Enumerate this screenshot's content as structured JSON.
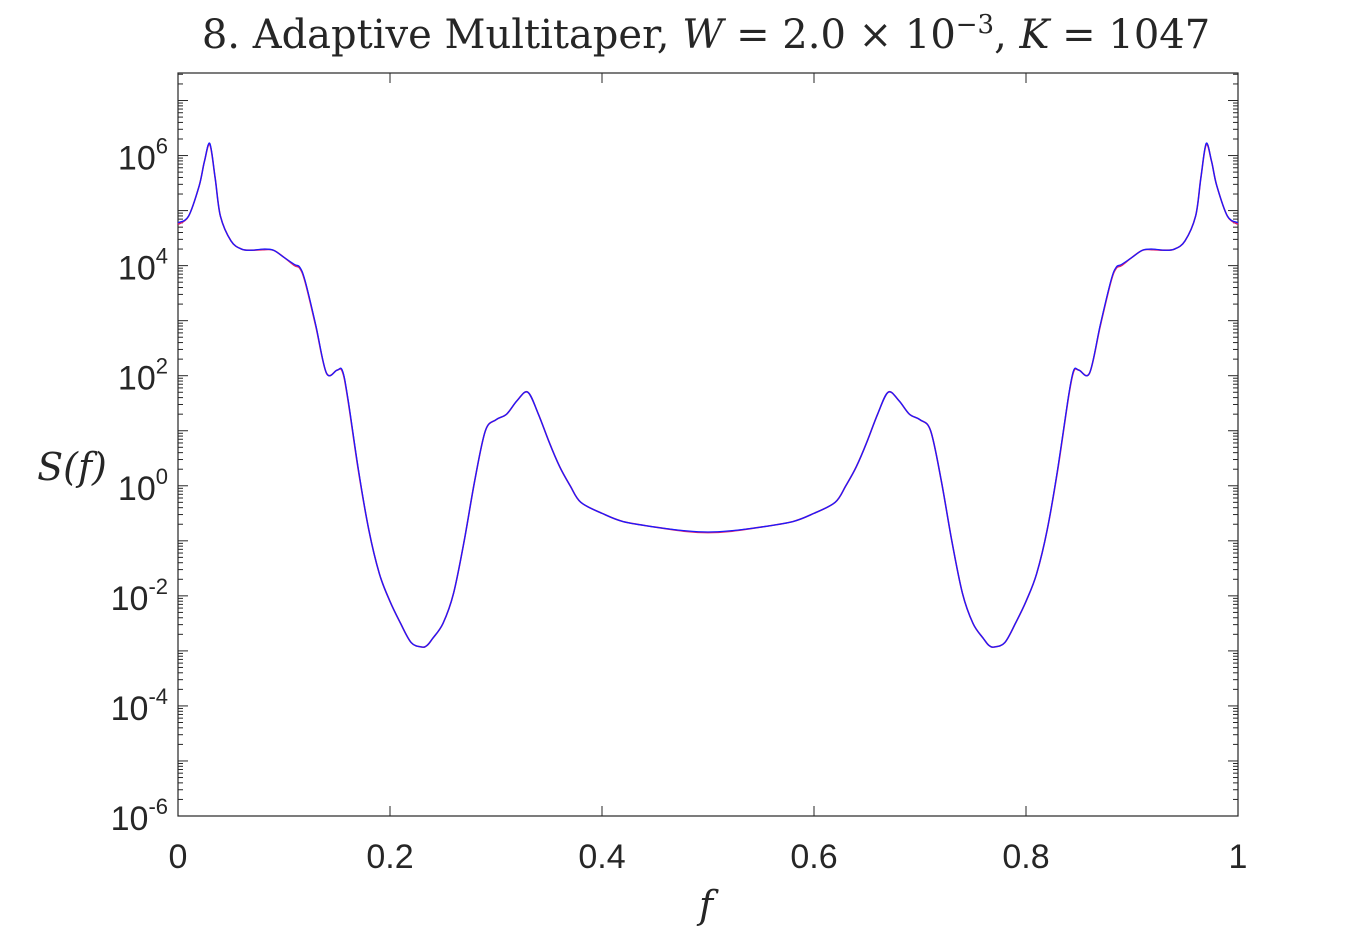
{
  "chart_data": {
    "type": "line",
    "title": {
      "prefix": "8.  Adaptive Multitaper, ",
      "w_symbol": "W",
      "w_eq": " = 2.0 × 10",
      "w_exp": "−3",
      "sep": ", ",
      "k_symbol": "K",
      "k_eq": " = 1047"
    },
    "xlabel": "f",
    "ylabel": "S(f)",
    "xlim": [
      0,
      1
    ],
    "ylim_log10": [
      -6,
      7.5
    ],
    "yscale": "log",
    "grid": false,
    "x_ticks": [
      "0",
      "0.2",
      "0.4",
      "0.6",
      "0.8",
      "1"
    ],
    "x_tick_values": [
      0,
      0.2,
      0.4,
      0.6,
      0.8,
      1
    ],
    "y_ticks": [
      {
        "base": "10",
        "exp": "6",
        "log10": 6
      },
      {
        "base": "10",
        "exp": "4",
        "log10": 4
      },
      {
        "base": "10",
        "exp": "2",
        "log10": 2
      },
      {
        "base": "10",
        "exp": "0",
        "log10": 0
      },
      {
        "base": "10",
        "exp": "-2",
        "log10": -2
      },
      {
        "base": "10",
        "exp": "-4",
        "log10": -4
      },
      {
        "base": "10",
        "exp": "-6",
        "log10": -6
      }
    ],
    "series": [
      {
        "color": "#e0206a",
        "x": [
          0,
          0.01,
          0.02,
          0.025,
          0.03,
          0.035,
          0.04,
          0.05,
          0.06,
          0.07,
          0.08,
          0.09,
          0.1,
          0.11,
          0.115,
          0.12,
          0.13,
          0.14,
          0.15,
          0.155,
          0.16,
          0.17,
          0.18,
          0.19,
          0.2,
          0.21,
          0.22,
          0.23,
          0.235,
          0.24,
          0.25,
          0.26,
          0.27,
          0.28,
          0.29,
          0.3,
          0.31,
          0.32,
          0.33,
          0.34,
          0.35,
          0.36,
          0.37,
          0.38,
          0.4,
          0.42,
          0.45,
          0.48,
          0.5
        ],
        "y_log10": [
          4.75,
          4.9,
          5.45,
          5.9,
          6.2,
          5.6,
          4.9,
          4.45,
          4.3,
          4.28,
          4.29,
          4.28,
          4.15,
          4.0,
          3.95,
          3.7,
          2.9,
          2.05,
          2.1,
          2.08,
          1.6,
          0.3,
          -0.8,
          -1.6,
          -2.1,
          -2.5,
          -2.85,
          -2.93,
          -2.9,
          -2.78,
          -2.5,
          -1.95,
          -1.0,
          0.1,
          1.0,
          1.2,
          1.3,
          1.55,
          1.7,
          1.3,
          0.8,
          0.35,
          0.0,
          -0.3,
          -0.5,
          -0.65,
          -0.75,
          -0.83,
          -0.85
        ],
        "mirror_about": 0.5
      },
      {
        "color": "#1a1aff",
        "x": [
          0,
          0.01,
          0.02,
          0.025,
          0.03,
          0.035,
          0.04,
          0.05,
          0.06,
          0.07,
          0.08,
          0.09,
          0.1,
          0.11,
          0.115,
          0.12,
          0.13,
          0.14,
          0.15,
          0.155,
          0.16,
          0.17,
          0.18,
          0.19,
          0.2,
          0.21,
          0.22,
          0.23,
          0.235,
          0.24,
          0.25,
          0.26,
          0.27,
          0.28,
          0.29,
          0.3,
          0.31,
          0.32,
          0.33,
          0.34,
          0.35,
          0.36,
          0.37,
          0.38,
          0.4,
          0.42,
          0.45,
          0.48,
          0.5
        ],
        "y_log10": [
          4.78,
          4.9,
          5.45,
          5.9,
          6.22,
          5.6,
          4.9,
          4.45,
          4.3,
          4.28,
          4.3,
          4.28,
          4.15,
          4.02,
          3.97,
          3.72,
          2.92,
          2.05,
          2.1,
          2.1,
          1.62,
          0.32,
          -0.8,
          -1.6,
          -2.1,
          -2.5,
          -2.85,
          -2.93,
          -2.9,
          -2.78,
          -2.5,
          -1.95,
          -1.0,
          0.1,
          1.0,
          1.2,
          1.3,
          1.55,
          1.7,
          1.3,
          0.8,
          0.35,
          0.0,
          -0.3,
          -0.5,
          -0.65,
          -0.75,
          -0.82,
          -0.84
        ],
        "mirror_about": 0.5
      }
    ]
  }
}
